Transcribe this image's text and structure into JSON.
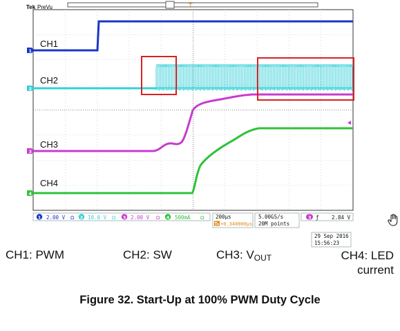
{
  "chart_data": {
    "type": "line",
    "title": "Figure 32. Start-Up at 100% PWM Duty Cycle",
    "scope_header": {
      "brand": "Tek",
      "mode": "PreVu"
    },
    "x_divisions": 10,
    "y_divisions": 8,
    "channels": [
      {
        "id": "1",
        "label": "CH1",
        "scale": "2.00 V",
        "color": "#1a35c8"
      },
      {
        "id": "2",
        "label": "CH2",
        "scale": "10.0 V",
        "color": "#35d0d8"
      },
      {
        "id": "3",
        "label": "CH3",
        "scale": "2.00 V",
        "color": "#c83ad0"
      },
      {
        "id": "4",
        "label": "CH4",
        "scale": "500mA",
        "color": "#2ec23a"
      }
    ],
    "status_bar": {
      "bw_marker": "Ω",
      "timebase": "200µs",
      "trigger_position": "+0.340000µs",
      "trigger_marker": "T▸",
      "sample_rate": "5.00GS/s",
      "record_length": "20M points",
      "trigger_channel": "3",
      "trigger_slope": "ƒ",
      "trigger_level": "2.84 V",
      "date": "29 Sep  2016",
      "time": "15:56:23"
    },
    "legend": {
      "ch1": "CH1: PWM",
      "ch2": "CH2: SW",
      "ch3_prefix": "CH3: V",
      "ch3_sub": "OUT",
      "ch4_line1": "CH4: LED",
      "ch4_line2": "current"
    },
    "highlight_color": "#d92020"
  }
}
